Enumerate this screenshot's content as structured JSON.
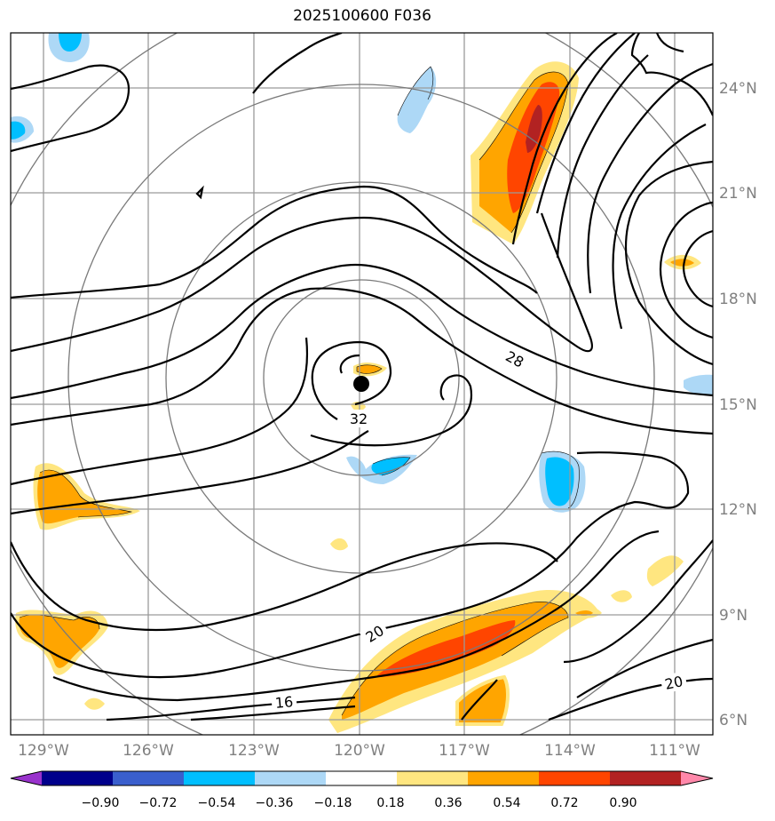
{
  "title": "2025100600 F036",
  "lon_ticks": [
    "129°W",
    "126°W",
    "123°W",
    "120°W",
    "117°W",
    "114°W",
    "111°W"
  ],
  "lat_ticks": [
    "24°N",
    "21°N",
    "18°N",
    "15°N",
    "12°N",
    "9°N",
    "6°N"
  ],
  "contour_labels": [
    "32",
    "28",
    "20",
    "16",
    "20"
  ],
  "colorbar": {
    "tick_labels": [
      "−0.90",
      "−0.72",
      "−0.54",
      "−0.36",
      "−0.18",
      "0.18",
      "0.36",
      "0.54",
      "0.72",
      "0.90"
    ],
    "colors": [
      "#9932CC",
      "#00008B",
      "#3A5FCD",
      "#00BFFF",
      "#ADD8F6",
      "#FFFFFF",
      "#FFE680",
      "#FFA500",
      "#FF4500",
      "#B22222",
      "#FF88AA"
    ]
  },
  "storm_center": {
    "lon": "120°W",
    "lat": "15.6°N"
  }
}
